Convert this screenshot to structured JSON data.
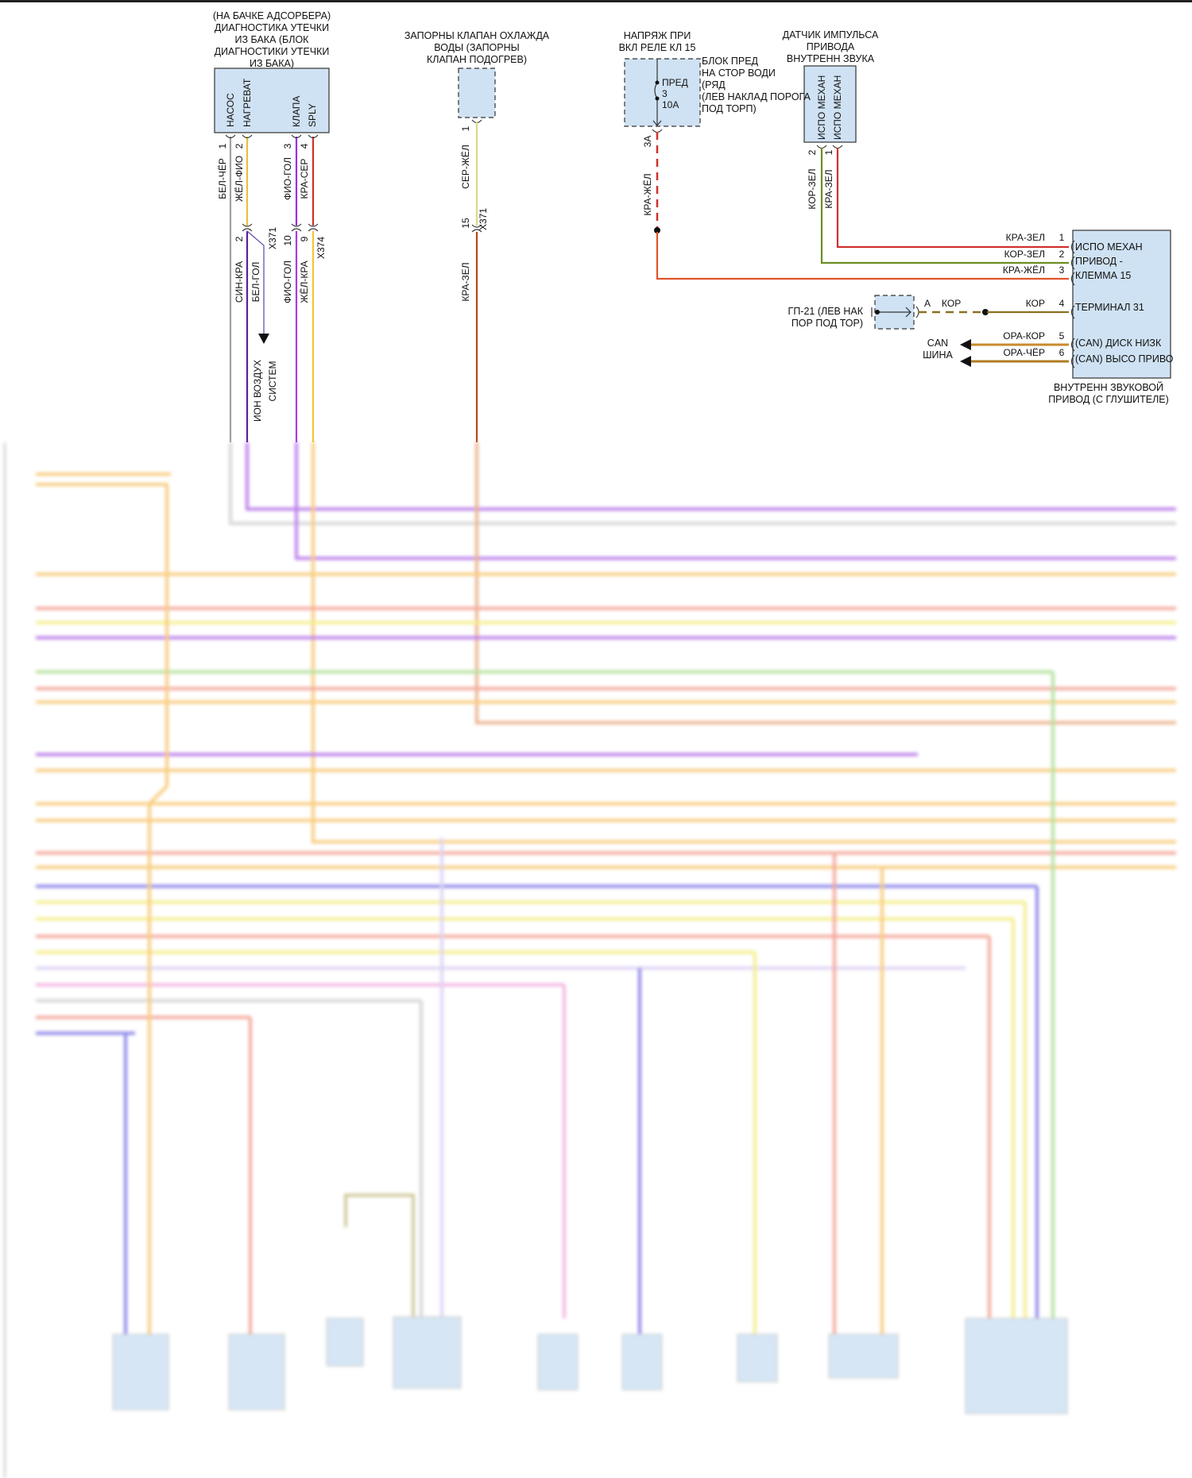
{
  "components": {
    "leak_diagnosis": {
      "title": "(НА БАЧКЕ АДСОРБЕРА)\nДИАГНОСТИКА УТЕЧКИ\nИЗ БАКА (БЛОК\nДИАГНОСТИКИ УТЕЧКИ\nИЗ БАКА)",
      "pins": [
        "НАСОС",
        "НАГРЕВАТ",
        "КЛАПА",
        "SPLY"
      ],
      "pin_numbers": [
        "1",
        "2",
        "3",
        "4"
      ],
      "wires_upper": [
        "БЕЛ-ЧЁР",
        "ЖЁЛ-ФИО",
        "ФИО-ГОЛ",
        "КРА-СЕР"
      ],
      "connector_x371": "X371",
      "connector_x374": "X374",
      "conn_pins": [
        "2",
        "10",
        "9"
      ],
      "wires_lower": [
        "СИН-КРА",
        "БЕЛ-ГОЛ",
        "ФИО-ГОЛ",
        "ЖЁЛ-КРА"
      ],
      "arrow_label_1": "ИОН ВОЗДУХ",
      "arrow_label_2": "СИСТЕМ"
    },
    "coolant_valve": {
      "title": "ЗАПОРНЫ КЛАПАН ОХЛАЖДА\nВОДЫ (ЗАПОРНЫ\nКЛАПАН ПОДОГРЕВ)",
      "pin": "1",
      "wire_upper": "СЕР-ЖЁЛ",
      "conn_pin": "15",
      "connector": "X371",
      "wire_lower": "КРА-ЗЕЛ"
    },
    "fuse": {
      "title": "НАПРЯЖ ПРИ\nВКЛ РЕЛЕ КЛ 15",
      "box_label": "БЛОК ПРЕД\nНА СТОР ВОДИ\n(РЯД\n(ЛЕВ НАКЛАД ПОРОГА\nПОД ТОРП)",
      "fuse_label": "ПРЕД\n3\n10А",
      "pin": "3А",
      "wire": "КРА-ЖЁЛ"
    },
    "sensor": {
      "title": "ДАТЧИК ИМПУЛЬСА\nПРИВОДА\nВНУТРЕНН ЗВУКА",
      "pins": [
        "ИСПО МЕХАН",
        "ИСПО МЕХАН"
      ],
      "pin_numbers": [
        "2",
        "1"
      ],
      "wires": [
        "КОР-ЗЕЛ",
        "КРА-ЗЕЛ"
      ]
    },
    "actuator": {
      "title": "ВНУТРЕНН ЗВУКОВОЙ\nПРИВОД (С ГЛУШИТЕЛЕ)",
      "pin_label_1": "ИСПО МЕХАН\nПРИВОД -\nКЛЕММА 15",
      "pin_label_4": "ТЕРМИНАЛ 31",
      "pin_label_5": "(CAN) ДИСК НИЗК",
      "pin_label_6": "(CAN) ВЫСО ПРИВО",
      "rows": [
        {
          "wire": "КРА-ЗЕЛ",
          "num": "1"
        },
        {
          "wire": "КОР-ЗЕЛ",
          "num": "2"
        },
        {
          "wire": "КРА-ЖЁЛ",
          "num": "3"
        },
        {
          "wire": "КОР",
          "num": "4"
        },
        {
          "wire": "ОРА-КОР",
          "num": "5"
        },
        {
          "wire": "ОРА-ЧЁР",
          "num": "6"
        }
      ]
    },
    "ground": {
      "label": "ГП-21 (ЛЕВ НАК\nПОР ПОД ТОР)",
      "pin": "A",
      "wire": "КОР"
    },
    "can_bus": "CAN\nШИНА"
  },
  "colors": {
    "box_fill": "#cfe2f3",
    "red": "#d0312d",
    "orange_red": "#e0552a",
    "green": "#6b8e23",
    "brown": "#8a7020",
    "orange_brown": "#c98a2c",
    "purple": "#9b30d9",
    "dark_purple": "#5a1d9e",
    "yellow": "#f2c62f",
    "gray": "#a0a0a0"
  }
}
